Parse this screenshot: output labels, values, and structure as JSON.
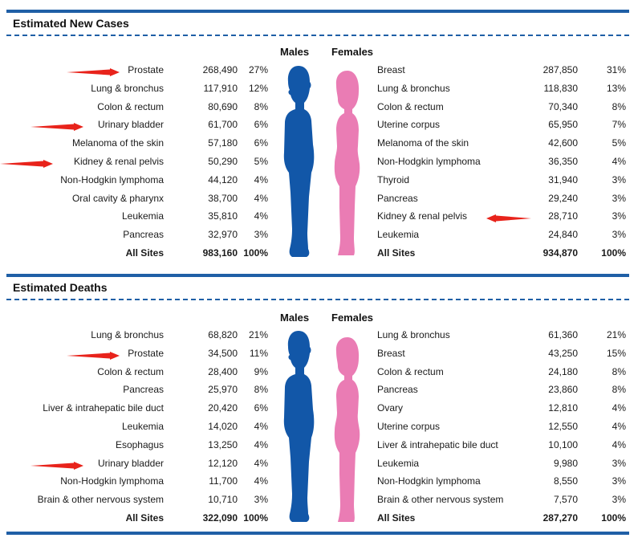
{
  "colors": {
    "rule": "#1f5fa6",
    "male": "#1257a8",
    "female": "#ea7cb4",
    "arrow": "#e8231b"
  },
  "new_cases": {
    "title": "Estimated New Cases",
    "males_label": "Males",
    "females_label": "Females",
    "males": [
      {
        "site": "Prostate",
        "count": "268,490",
        "pct": "27%",
        "arrow": true
      },
      {
        "site": "Lung & bronchus",
        "count": "117,910",
        "pct": "12%"
      },
      {
        "site": "Colon & rectum",
        "count": "80,690",
        "pct": "8%"
      },
      {
        "site": "Urinary bladder",
        "count": "61,700",
        "pct": "6%",
        "arrow": true
      },
      {
        "site": "Melanoma of the skin",
        "count": "57,180",
        "pct": "6%"
      },
      {
        "site": "Kidney & renal pelvis",
        "count": "50,290",
        "pct": "5%",
        "arrow": true
      },
      {
        "site": "Non-Hodgkin lymphoma",
        "count": "44,120",
        "pct": "4%"
      },
      {
        "site": "Oral cavity & pharynx",
        "count": "38,700",
        "pct": "4%"
      },
      {
        "site": "Leukemia",
        "count": "35,810",
        "pct": "4%"
      },
      {
        "site": "Pancreas",
        "count": "32,970",
        "pct": "3%"
      },
      {
        "site": "All Sites",
        "count": "983,160",
        "pct": "100%",
        "bold": true
      }
    ],
    "females": [
      {
        "site": "Breast",
        "count": "287,850",
        "pct": "31%"
      },
      {
        "site": "Lung & bronchus",
        "count": "118,830",
        "pct": "13%"
      },
      {
        "site": "Colon & rectum",
        "count": "70,340",
        "pct": "8%"
      },
      {
        "site": "Uterine corpus",
        "count": "65,950",
        "pct": "7%"
      },
      {
        "site": "Melanoma of the skin",
        "count": "42,600",
        "pct": "5%"
      },
      {
        "site": "Non-Hodgkin lymphoma",
        "count": "36,350",
        "pct": "4%"
      },
      {
        "site": "Thyroid",
        "count": "31,940",
        "pct": "3%"
      },
      {
        "site": "Pancreas",
        "count": "29,240",
        "pct": "3%"
      },
      {
        "site": "Kidney & renal pelvis",
        "count": "28,710",
        "pct": "3%",
        "arrow": true
      },
      {
        "site": "Leukemia",
        "count": "24,840",
        "pct": "3%"
      },
      {
        "site": "All Sites",
        "count": "934,870",
        "pct": "100%",
        "bold": true
      }
    ]
  },
  "deaths": {
    "title": "Estimated Deaths",
    "males_label": "Males",
    "females_label": "Females",
    "males": [
      {
        "site": "Lung & bronchus",
        "count": "68,820",
        "pct": "21%"
      },
      {
        "site": "Prostate",
        "count": "34,500",
        "pct": "11%",
        "arrow": true
      },
      {
        "site": "Colon & rectum",
        "count": "28,400",
        "pct": "9%"
      },
      {
        "site": "Pancreas",
        "count": "25,970",
        "pct": "8%"
      },
      {
        "site": "Liver & intrahepatic bile duct",
        "count": "20,420",
        "pct": "6%"
      },
      {
        "site": "Leukemia",
        "count": "14,020",
        "pct": "4%"
      },
      {
        "site": "Esophagus",
        "count": "13,250",
        "pct": "4%"
      },
      {
        "site": "Urinary bladder",
        "count": "12,120",
        "pct": "4%",
        "arrow": true
      },
      {
        "site": "Non-Hodgkin lymphoma",
        "count": "11,700",
        "pct": "4%"
      },
      {
        "site": "Brain & other nervous system",
        "count": "10,710",
        "pct": "3%"
      },
      {
        "site": "All Sites",
        "count": "322,090",
        "pct": "100%",
        "bold": true
      }
    ],
    "females": [
      {
        "site": "Lung & bronchus",
        "count": "61,360",
        "pct": "21%"
      },
      {
        "site": "Breast",
        "count": "43,250",
        "pct": "15%"
      },
      {
        "site": "Colon & rectum",
        "count": "24,180",
        "pct": "8%"
      },
      {
        "site": "Pancreas",
        "count": "23,860",
        "pct": "8%"
      },
      {
        "site": "Ovary",
        "count": "12,810",
        "pct": "4%"
      },
      {
        "site": "Uterine corpus",
        "count": "12,550",
        "pct": "4%"
      },
      {
        "site": "Liver & intrahepatic bile duct",
        "count": "10,100",
        "pct": "4%"
      },
      {
        "site": "Leukemia",
        "count": "9,980",
        "pct": "3%"
      },
      {
        "site": "Non-Hodgkin lymphoma",
        "count": "8,550",
        "pct": "3%"
      },
      {
        "site": "Brain & other nervous system",
        "count": "7,570",
        "pct": "3%"
      },
      {
        "site": "All Sites",
        "count": "287,270",
        "pct": "100%",
        "bold": true
      }
    ]
  }
}
